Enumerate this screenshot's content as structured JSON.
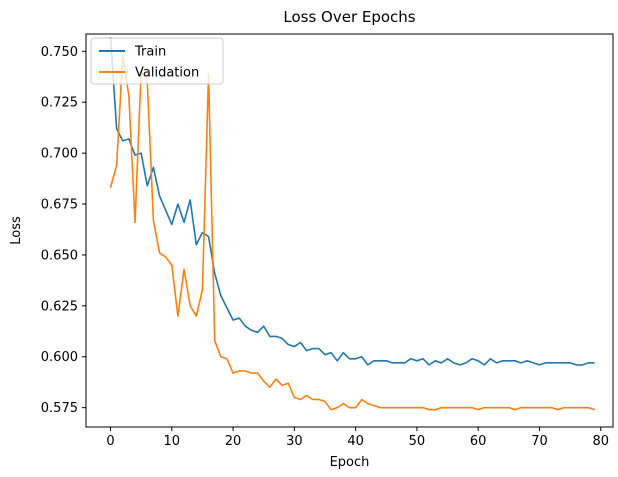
{
  "chart_data": {
    "type": "line",
    "title": "Loss Over Epochs",
    "xlabel": "Epoch",
    "ylabel": "Loss",
    "xlim": [
      -4,
      82
    ],
    "ylim": [
      0.5655,
      0.7585
    ],
    "xticks": [
      0,
      10,
      20,
      30,
      40,
      50,
      60,
      70,
      80
    ],
    "yticks": [
      0.575,
      0.6,
      0.625,
      0.65,
      0.675,
      0.7,
      0.725,
      0.75
    ],
    "ytick_labels": [
      "0.575",
      "0.600",
      "0.625",
      "0.650",
      "0.675",
      "0.700",
      "0.725",
      "0.750"
    ],
    "grid": false,
    "legend_position": "upper-left",
    "x": [
      0,
      1,
      2,
      3,
      4,
      5,
      6,
      7,
      8,
      9,
      10,
      11,
      12,
      13,
      14,
      15,
      16,
      17,
      18,
      19,
      20,
      21,
      22,
      23,
      24,
      25,
      26,
      27,
      28,
      29,
      30,
      31,
      32,
      33,
      34,
      35,
      36,
      37,
      38,
      39,
      40,
      41,
      42,
      43,
      44,
      45,
      46,
      47,
      48,
      49,
      50,
      51,
      52,
      53,
      54,
      55,
      56,
      57,
      58,
      59,
      60,
      61,
      62,
      63,
      64,
      65,
      66,
      67,
      68,
      69,
      70,
      71,
      72,
      73,
      74,
      75,
      76,
      77,
      78,
      79
    ],
    "series": [
      {
        "name": "Train",
        "color": "#1f77b4",
        "values": [
          0.757,
          0.712,
          0.706,
          0.707,
          0.699,
          0.7,
          0.684,
          0.693,
          0.679,
          0.672,
          0.665,
          0.675,
          0.666,
          0.677,
          0.655,
          0.661,
          0.659,
          0.641,
          0.63,
          0.624,
          0.618,
          0.619,
          0.615,
          0.613,
          0.612,
          0.615,
          0.61,
          0.61,
          0.609,
          0.606,
          0.605,
          0.607,
          0.603,
          0.604,
          0.604,
          0.601,
          0.602,
          0.598,
          0.602,
          0.599,
          0.599,
          0.6,
          0.596,
          0.598,
          0.598,
          0.598,
          0.597,
          0.597,
          0.597,
          0.599,
          0.598,
          0.599,
          0.596,
          0.598,
          0.597,
          0.599,
          0.597,
          0.596,
          0.597,
          0.599,
          0.598,
          0.596,
          0.599,
          0.597,
          0.598,
          0.598,
          0.598,
          0.597,
          0.598,
          0.597,
          0.596,
          0.597,
          0.597,
          0.597,
          0.597,
          0.597,
          0.596,
          0.596,
          0.597,
          0.597
        ]
      },
      {
        "name": "Validation",
        "color": "#ff7f0e",
        "values": [
          0.683,
          0.694,
          0.748,
          0.728,
          0.666,
          0.74,
          0.735,
          0.667,
          0.651,
          0.649,
          0.645,
          0.62,
          0.643,
          0.625,
          0.62,
          0.633,
          0.739,
          0.608,
          0.6,
          0.599,
          0.592,
          0.593,
          0.593,
          0.592,
          0.592,
          0.588,
          0.585,
          0.589,
          0.586,
          0.587,
          0.58,
          0.579,
          0.581,
          0.579,
          0.579,
          0.578,
          0.574,
          0.575,
          0.577,
          0.575,
          0.575,
          0.579,
          0.577,
          0.576,
          0.575,
          0.575,
          0.575,
          0.575,
          0.575,
          0.575,
          0.575,
          0.575,
          0.574,
          0.574,
          0.575,
          0.575,
          0.575,
          0.575,
          0.575,
          0.575,
          0.574,
          0.575,
          0.575,
          0.575,
          0.575,
          0.575,
          0.574,
          0.575,
          0.575,
          0.575,
          0.575,
          0.575,
          0.575,
          0.574,
          0.575,
          0.575,
          0.575,
          0.575,
          0.575,
          0.574
        ]
      }
    ]
  }
}
